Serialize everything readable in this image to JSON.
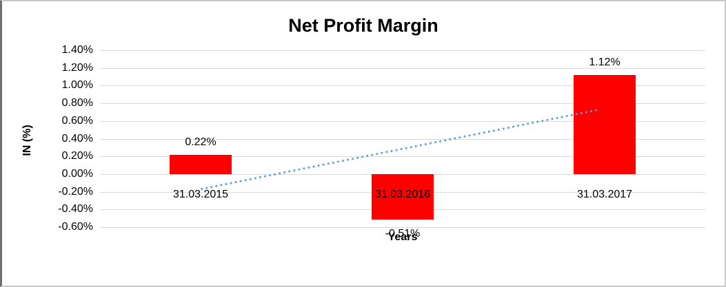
{
  "chart_data": {
    "type": "bar",
    "title": "Net Profit Margin",
    "xlabel": "Years",
    "ylabel": "IN (%)",
    "categories": [
      "31.03.2015",
      "31.03.2016",
      "31.03.2017"
    ],
    "values": [
      0.22,
      -0.51,
      1.12
    ],
    "data_labels": [
      "0.22%",
      "-0.51%",
      "1.12%"
    ],
    "ylim": [
      -0.6,
      1.4
    ],
    "ytick_step": 0.2,
    "ytick_labels": [
      "1.40%",
      "1.20%",
      "1.00%",
      "0.80%",
      "0.60%",
      "0.40%",
      "0.20%",
      "0.00%",
      "-0.20%",
      "-0.40%",
      "-0.60%"
    ],
    "grid": "horizontal",
    "legend": "none",
    "bar_color": "#ff0000",
    "gridline_color": "#d9d9d9",
    "text_color": "#000000",
    "trendline": {
      "type": "linear",
      "style": "dotted",
      "color": "#5b9bd5",
      "start_category_index": 0,
      "end_category_index": 2,
      "y_start": -0.17,
      "y_end": 0.73
    }
  }
}
